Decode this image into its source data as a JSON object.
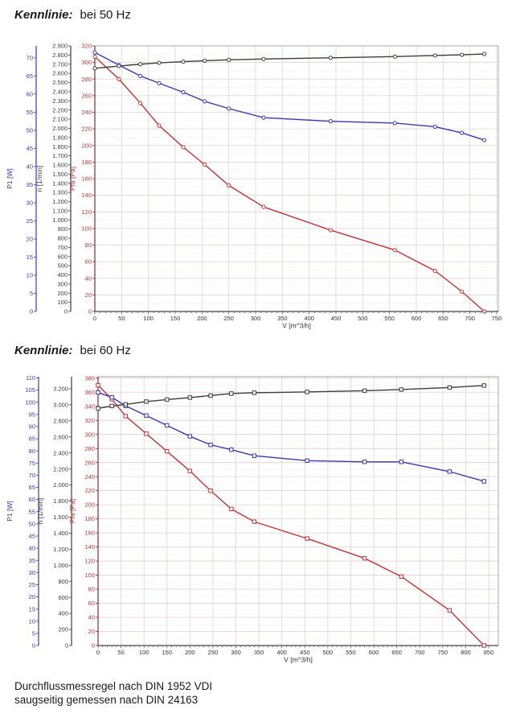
{
  "page": {
    "footer_line1": "Durchflussmessregel nach DIN 1952 VDI",
    "footer_line2": "saugseitig gemessen nach DIN 24163"
  },
  "colors": {
    "p1_blue": "#3939b4",
    "n_black": "#3c3c3c",
    "pfa_red": "#c23434",
    "pfa_axis_dark_red": "#8f2727",
    "grid_vertical": "#d6d6d6",
    "grid_horizontal_major": "#e6cccc",
    "grid_horizontal_minor": "#ececec",
    "plot_border": "#a8a8a8",
    "x_axis_line": "#444444"
  },
  "chart_data": [
    {
      "type": "line",
      "title_label": "Kennlinie:",
      "title_text": "bei 50 Hz",
      "marker": "circle",
      "grid": true,
      "x_axis": {
        "title": "V [m^3/h]",
        "min": 0,
        "max": 753,
        "tick_step": 50,
        "minor_step": 10,
        "last_label": 750
      },
      "y_axes": [
        {
          "id": "p1",
          "title": "P1 [W]",
          "min": 0,
          "max_at_top": 73.3,
          "label_max": 70,
          "step": 5,
          "color": "#3939b4",
          "thousands": false
        },
        {
          "id": "n",
          "title": "n [1/min]",
          "min": 0,
          "max_at_top": 2900,
          "label_max": 2900,
          "step": 100,
          "color": "#3c3c3c",
          "thousands": true
        },
        {
          "id": "pfa",
          "title": "Pfa [Pa]",
          "min": 0,
          "max_at_top": 320,
          "label_max": 320,
          "step": 20,
          "color": "#c23434",
          "thousands": false,
          "line_color": "#8f2727"
        }
      ],
      "series": [
        {
          "name": "Pfa [Pa]",
          "axis": "pfa",
          "color": "#c23434",
          "x": [
            0,
            45,
            85,
            120,
            165,
            205,
            250,
            315,
            440,
            560,
            635,
            685,
            727
          ],
          "values": [
            307,
            280,
            251,
            224,
            198,
            177,
            152,
            126,
            98,
            74,
            49,
            24,
            0
          ]
        },
        {
          "name": "P1 [W]",
          "axis": "p1",
          "color": "#3939b4",
          "x": [
            0,
            45,
            85,
            120,
            165,
            205,
            250,
            315,
            440,
            560,
            635,
            685,
            727
          ],
          "values": [
            71.5,
            68,
            65,
            63,
            60.5,
            58,
            56,
            53.5,
            52.5,
            52,
            51,
            49.3,
            47.3
          ]
        },
        {
          "name": "n [1/min]",
          "axis": "n",
          "color": "#3c3c3c",
          "x": [
            0,
            45,
            85,
            120,
            165,
            205,
            250,
            315,
            440,
            560,
            635,
            685,
            727
          ],
          "values": [
            2655,
            2680,
            2700,
            2715,
            2728,
            2738,
            2748,
            2757,
            2770,
            2783,
            2795,
            2803,
            2812
          ]
        }
      ]
    },
    {
      "type": "line",
      "title_label": "Kennlinie:",
      "title_text": "bei 60 Hz",
      "marker": "square",
      "grid": true,
      "x_axis": {
        "title": "V [m^3/h]",
        "min": 0,
        "max": 871,
        "tick_step": 50,
        "minor_step": 10,
        "last_label": 850
      },
      "y_axes": [
        {
          "id": "p1",
          "title": "P1 [W]",
          "min": 0,
          "max_at_top": 110.5,
          "label_max": 110,
          "step": 5,
          "color": "#3939b4",
          "thousands": false
        },
        {
          "id": "n",
          "title": "n [1/min]",
          "min": 0,
          "max_at_top": 3350,
          "label_max": 3200,
          "step": 200,
          "color": "#3c3c3c",
          "thousands": true
        },
        {
          "id": "pfa",
          "title": "Pfa [Pa]",
          "min": 0,
          "max_at_top": 382,
          "label_max": 380,
          "step": 20,
          "color": "#c23434",
          "thousands": false,
          "line_color": "#8f2727"
        }
      ],
      "series": [
        {
          "name": "Pfa [Pa]",
          "axis": "pfa",
          "color": "#c23434",
          "x": [
            0,
            30,
            60,
            105,
            150,
            200,
            245,
            290,
            340,
            455,
            580,
            660,
            765,
            840
          ],
          "values": [
            370,
            350,
            326,
            301,
            276,
            248,
            220,
            194,
            176,
            152,
            124,
            98,
            50,
            0
          ]
        },
        {
          "name": "P1 [W]",
          "axis": "p1",
          "color": "#3939b4",
          "x": [
            0,
            30,
            60,
            105,
            150,
            200,
            245,
            290,
            340,
            455,
            580,
            660,
            765,
            840
          ],
          "values": [
            104,
            102,
            98.5,
            94.5,
            90.5,
            86,
            82.5,
            80.5,
            78,
            76,
            75.5,
            75.5,
            71.5,
            67.5
          ]
        },
        {
          "name": "n [1/min]",
          "axis": "n",
          "color": "#3c3c3c",
          "x": [
            0,
            30,
            60,
            105,
            150,
            200,
            245,
            290,
            340,
            455,
            580,
            660,
            765,
            840
          ],
          "values": [
            2955,
            2985,
            3005,
            3040,
            3065,
            3090,
            3115,
            3140,
            3150,
            3160,
            3175,
            3190,
            3215,
            3240
          ]
        }
      ]
    }
  ]
}
